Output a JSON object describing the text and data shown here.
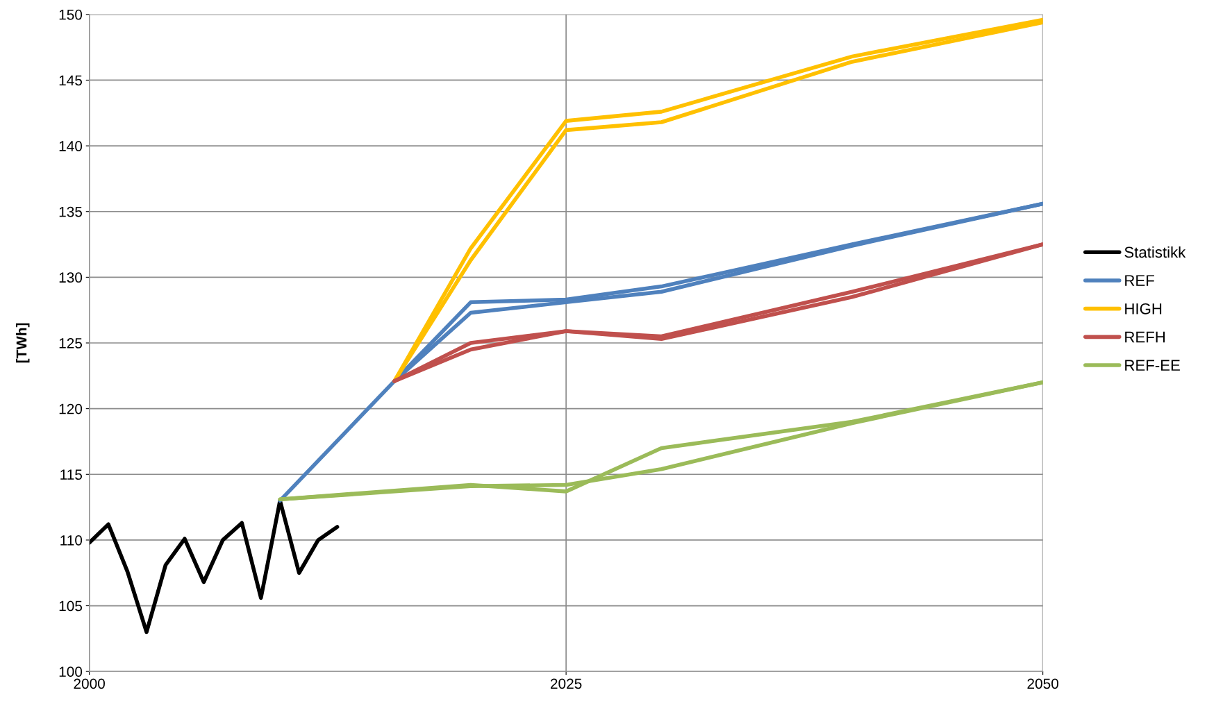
{
  "chart_data": {
    "type": "line",
    "ylabel": "[TWh]",
    "xlim": [
      2000,
      2050
    ],
    "xticks": [
      2000,
      2025,
      2050
    ],
    "ylim": [
      100,
      150
    ],
    "yticks": [
      100,
      105,
      110,
      115,
      120,
      125,
      130,
      135,
      140,
      145,
      150
    ],
    "grid": true,
    "legend": "right",
    "marker": "none",
    "line_style": "solid",
    "series": [
      {
        "name": "Statistikk",
        "color": "#000000",
        "x": [
          2000,
          2001,
          2002,
          2003,
          2004,
          2005,
          2006,
          2007,
          2008,
          2009,
          2010,
          2011,
          2012,
          2013
        ],
        "values": [
          109.8,
          111.2,
          107.6,
          103.0,
          108.1,
          110.1,
          106.8,
          110.0,
          111.3,
          105.6,
          113.0,
          107.5,
          110.0,
          111.0
        ]
      },
      {
        "name": "REF",
        "color": "#4f81bd",
        "x": [
          2010,
          2016,
          2020,
          2025,
          2030,
          2040,
          2050
        ],
        "values": [
          113.0,
          122.1,
          128.1,
          128.3,
          129.3,
          132.5,
          135.6
        ]
      },
      {
        "color": "#4f81bd",
        "x": [
          2016,
          2020,
          2025,
          2030,
          2040,
          2050
        ],
        "values": [
          122.1,
          127.3,
          128.1,
          128.9,
          132.4,
          135.6
        ]
      },
      {
        "name": "HIGH",
        "color": "#ffc000",
        "x": [
          2016,
          2020,
          2025,
          2030,
          2040,
          2050
        ],
        "values": [
          122.1,
          132.2,
          141.9,
          142.6,
          146.8,
          149.6
        ]
      },
      {
        "color": "#ffc000",
        "x": [
          2016,
          2020,
          2025,
          2030,
          2040,
          2050
        ],
        "values": [
          122.1,
          131.3,
          141.2,
          141.8,
          146.4,
          149.4
        ]
      },
      {
        "name": "REFH",
        "color": "#c0504d",
        "x": [
          2016,
          2020,
          2025,
          2030,
          2040,
          2050
        ],
        "values": [
          122.1,
          125.0,
          125.9,
          125.5,
          128.9,
          132.5
        ]
      },
      {
        "color": "#c0504d",
        "x": [
          2016,
          2020,
          2025,
          2030,
          2040,
          2050
        ],
        "values": [
          122.1,
          124.5,
          125.9,
          125.3,
          128.5,
          132.5
        ]
      },
      {
        "name": "REF-EE",
        "color": "#9bbb59",
        "x": [
          2010,
          2020,
          2025,
          2030,
          2040,
          2050
        ],
        "values": [
          113.1,
          114.2,
          113.7,
          117.0,
          119.0,
          122.0
        ]
      },
      {
        "color": "#9bbb59",
        "x": [
          2010,
          2020,
          2025,
          2030,
          2040,
          2050
        ],
        "values": [
          113.1,
          114.1,
          114.2,
          115.4,
          118.9,
          122.0
        ]
      }
    ]
  }
}
